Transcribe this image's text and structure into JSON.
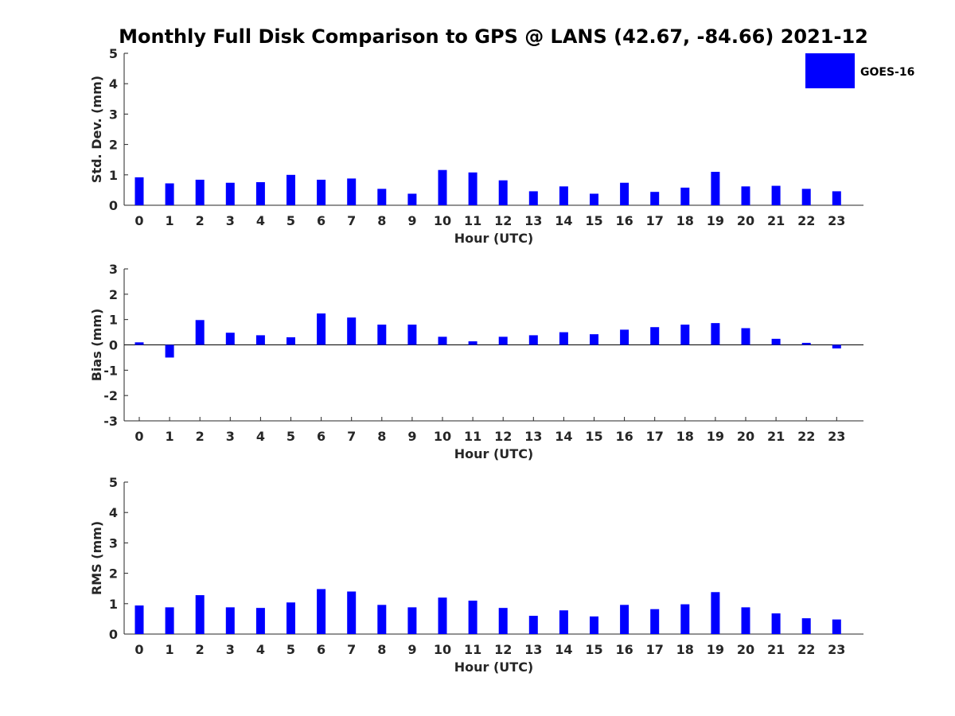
{
  "figure": {
    "title": "Monthly Full Disk Comparison to GPS @ LANS (42.67, -84.66) 2021-12",
    "legend": {
      "label": "GOES-16",
      "color": "#0000ff",
      "position": "top-right"
    }
  },
  "chart_data": [
    {
      "type": "bar",
      "title": "Monthly Full Disk Comparison to GPS @ LANS (42.67, -84.66) 2021-12",
      "xlabel": "Hour (UTC)",
      "ylabel": "Std. Dev. (mm)",
      "ylim": [
        0,
        5
      ],
      "yticks": [
        0,
        1,
        2,
        3,
        4,
        5
      ],
      "categories": [
        "0",
        "1",
        "2",
        "3",
        "4",
        "5",
        "6",
        "7",
        "8",
        "9",
        "10",
        "11",
        "12",
        "13",
        "14",
        "15",
        "16",
        "17",
        "18",
        "19",
        "20",
        "21",
        "22",
        "23"
      ],
      "series": [
        {
          "name": "GOES-16",
          "color": "#0000ff",
          "values": [
            0.92,
            0.72,
            0.84,
            0.74,
            0.76,
            1.0,
            0.84,
            0.88,
            0.54,
            0.38,
            1.16,
            1.08,
            0.82,
            0.46,
            0.62,
            0.38,
            0.74,
            0.44,
            0.58,
            1.1,
            0.62,
            0.64,
            0.54,
            0.46
          ]
        }
      ],
      "legend": "top-right",
      "grid": false
    },
    {
      "type": "bar",
      "xlabel": "Hour (UTC)",
      "ylabel": "Bias (mm)",
      "ylim": [
        -3,
        3
      ],
      "yticks": [
        -3,
        -2,
        -1,
        0,
        1,
        2,
        3
      ],
      "categories": [
        "0",
        "1",
        "2",
        "3",
        "4",
        "5",
        "6",
        "7",
        "8",
        "9",
        "10",
        "11",
        "12",
        "13",
        "14",
        "15",
        "16",
        "17",
        "18",
        "19",
        "20",
        "21",
        "22",
        "23"
      ],
      "series": [
        {
          "name": "GOES-16",
          "color": "#0000ff",
          "values": [
            0.1,
            -0.5,
            0.98,
            0.48,
            0.38,
            0.3,
            1.24,
            1.08,
            0.8,
            0.8,
            0.32,
            0.14,
            0.32,
            0.38,
            0.5,
            0.42,
            0.6,
            0.7,
            0.8,
            0.86,
            0.66,
            0.24,
            0.08,
            -0.14
          ]
        }
      ],
      "grid": false
    },
    {
      "type": "bar",
      "xlabel": "Hour (UTC)",
      "ylabel": "RMS (mm)",
      "ylim": [
        0,
        5
      ],
      "yticks": [
        0,
        1,
        2,
        3,
        4,
        5
      ],
      "categories": [
        "0",
        "1",
        "2",
        "3",
        "4",
        "5",
        "6",
        "7",
        "8",
        "9",
        "10",
        "11",
        "12",
        "13",
        "14",
        "15",
        "16",
        "17",
        "18",
        "19",
        "20",
        "21",
        "22",
        "23"
      ],
      "series": [
        {
          "name": "GOES-16",
          "color": "#0000ff",
          "values": [
            0.94,
            0.88,
            1.28,
            0.88,
            0.86,
            1.04,
            1.48,
            1.4,
            0.96,
            0.88,
            1.2,
            1.1,
            0.86,
            0.6,
            0.78,
            0.58,
            0.96,
            0.82,
            0.98,
            1.38,
            0.88,
            0.68,
            0.52,
            0.48
          ]
        }
      ],
      "grid": false
    }
  ]
}
